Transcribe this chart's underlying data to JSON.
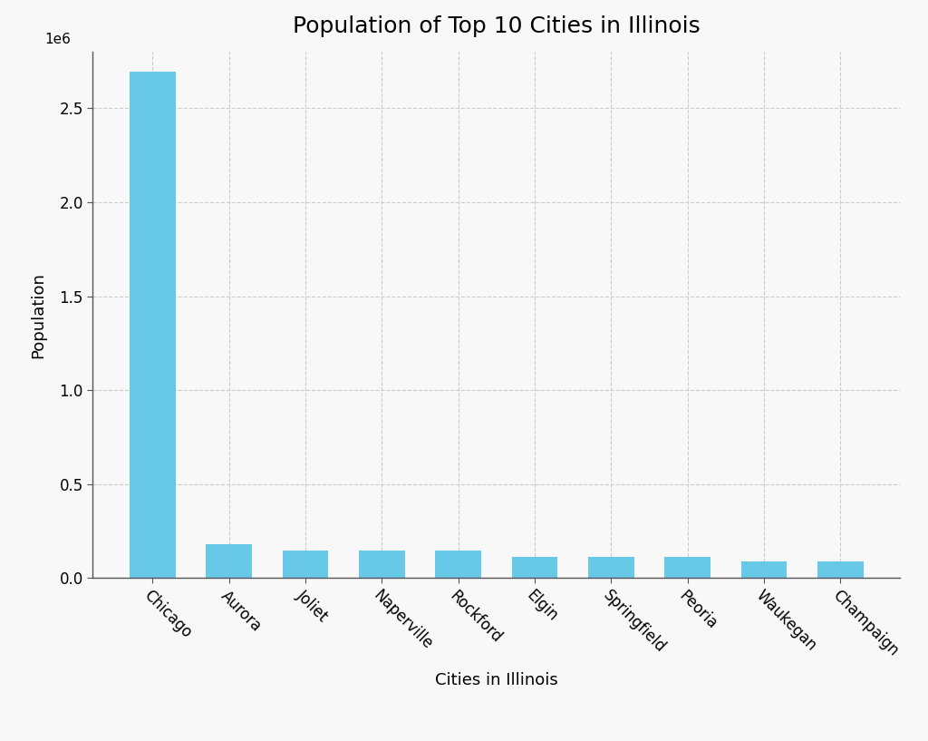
{
  "title": "Population of Top 10 Cities in Illinois",
  "xlabel": "Cities in Illinois",
  "ylabel": "Population",
  "categories": [
    "Chicago",
    "Aurora",
    "Joliet",
    "Naperville",
    "Rockford",
    "Elgin",
    "Springfield",
    "Peoria",
    "Waukegan",
    "Champaign"
  ],
  "values": [
    2696555,
    180542,
    147433,
    148449,
    147651,
    112456,
    114394,
    113150,
    88826,
    88909
  ],
  "bar_color": "#67C8E8",
  "background_color": "#f8f8f8",
  "grid_color": "#cccccc",
  "title_fontsize": 18,
  "axis_label_fontsize": 13,
  "tick_label_fontsize": 12,
  "ylim": [
    0,
    2800000
  ],
  "yticks": [
    0,
    500000,
    1000000,
    1500000,
    2000000,
    2500000
  ],
  "ytick_labels": [
    "0.0",
    "0.5",
    "1.0",
    "1.5",
    "2.0",
    "2.5"
  ]
}
